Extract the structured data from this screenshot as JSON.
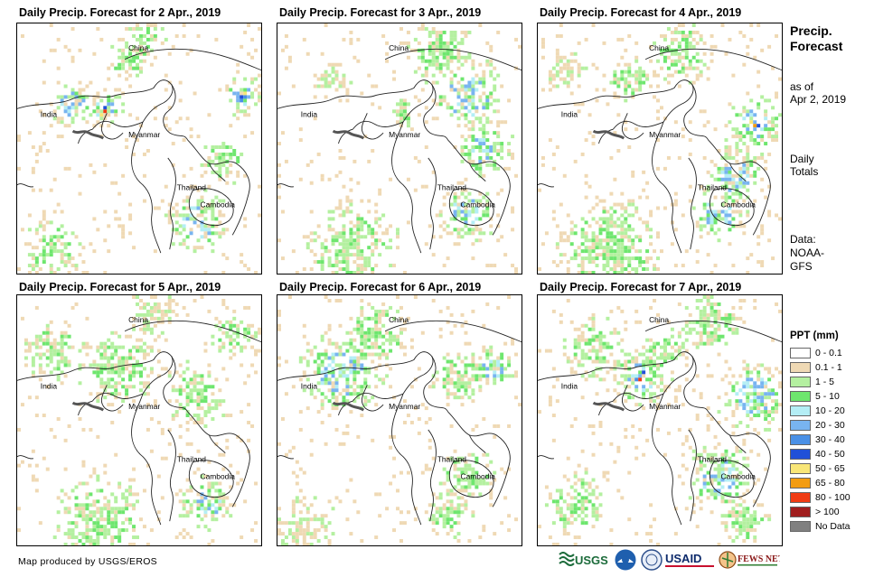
{
  "panels": [
    {
      "title": "Daily Precip. Forecast for 2 Apr., 2019"
    },
    {
      "title": "Daily Precip. Forecast for 3 Apr., 2019"
    },
    {
      "title": "Daily Precip. Forecast for 4 Apr., 2019"
    },
    {
      "title": "Daily Precip. Forecast for 5 Apr., 2019"
    },
    {
      "title": "Daily Precip. Forecast for 6 Apr., 2019"
    },
    {
      "title": "Daily Precip. Forecast for 7 Apr., 2019"
    }
  ],
  "map_labels": {
    "china": "China",
    "india": "India",
    "myanmar": "Myanmar",
    "thailand": "Thailand",
    "cambodia": "Cambodia"
  },
  "sidebar": {
    "title": "Precip. Forecast",
    "as_of_line1": "as of",
    "as_of_line2": "Apr 2, 2019",
    "totals_line1": "Daily",
    "totals_line2": "Totals",
    "data_line1": "Data:",
    "data_line2": "NOAA-",
    "data_line3": "GFS"
  },
  "legend": {
    "title": "PPT (mm)",
    "items": [
      {
        "label": "0 - 0.1",
        "color": "#ffffff"
      },
      {
        "label": "0.1 - 1",
        "color": "#efd9b4"
      },
      {
        "label": "1 - 5",
        "color": "#b4f0a0"
      },
      {
        "label": "5 - 10",
        "color": "#6ee66e"
      },
      {
        "label": "10 - 20",
        "color": "#b4eef5"
      },
      {
        "label": "20 - 30",
        "color": "#78b4f0"
      },
      {
        "label": "30 - 40",
        "color": "#4a90e6"
      },
      {
        "label": "40 - 50",
        "color": "#2050d8"
      },
      {
        "label": "50 - 65",
        "color": "#f8e678"
      },
      {
        "label": "65 - 80",
        "color": "#f39c12"
      },
      {
        "label": "80 - 100",
        "color": "#f03c14"
      },
      {
        "label": "> 100",
        "color": "#a01e1e"
      },
      {
        "label": "No Data",
        "color": "#808080"
      }
    ]
  },
  "footer": {
    "credit": "Map produced by USGS/EROS",
    "logos": {
      "usgs": "USGS",
      "usaid": "USAID",
      "fewsnet": "FEWS NET"
    }
  }
}
